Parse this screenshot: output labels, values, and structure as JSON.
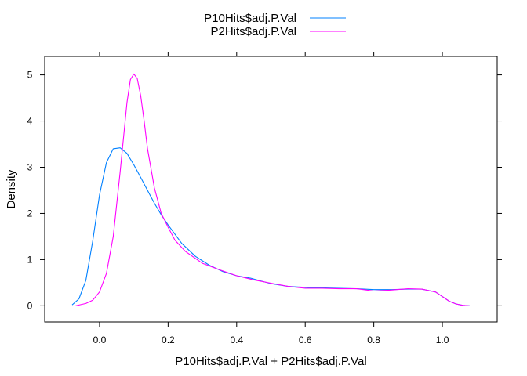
{
  "chart_data": {
    "type": "line",
    "xlabel": "P10Hits$adj.P.Val + P2Hits$adj.P.Val",
    "ylabel": "Density",
    "xlim": [
      -0.16,
      1.16
    ],
    "ylim": [
      -0.35,
      5.4
    ],
    "x_ticks": [
      0.0,
      0.2,
      0.4,
      0.6,
      0.8,
      1.0
    ],
    "x_tick_labels": [
      "0.0",
      "0.2",
      "0.4",
      "0.6",
      "0.8",
      "1.0"
    ],
    "y_ticks": [
      0,
      1,
      2,
      3,
      4,
      5
    ],
    "y_tick_labels": [
      "0",
      "1",
      "2",
      "3",
      "4",
      "5"
    ],
    "legend_position": "top",
    "series": [
      {
        "name": "P10Hits$adj.P.Val",
        "color": "#0080ff",
        "x": [
          -0.08,
          -0.06,
          -0.04,
          -0.02,
          0.0,
          0.02,
          0.04,
          0.06,
          0.08,
          0.1,
          0.12,
          0.14,
          0.16,
          0.18,
          0.2,
          0.24,
          0.28,
          0.32,
          0.36,
          0.4,
          0.44,
          0.5,
          0.55,
          0.6,
          0.65,
          0.7,
          0.75,
          0.8,
          0.85,
          0.9,
          0.94,
          0.98,
          1.0,
          1.02,
          1.04,
          1.06,
          1.08
        ],
        "y": [
          0.02,
          0.15,
          0.55,
          1.4,
          2.4,
          3.1,
          3.4,
          3.42,
          3.3,
          3.05,
          2.78,
          2.5,
          2.22,
          1.97,
          1.75,
          1.35,
          1.07,
          0.88,
          0.74,
          0.65,
          0.6,
          0.48,
          0.42,
          0.4,
          0.39,
          0.38,
          0.37,
          0.35,
          0.35,
          0.36,
          0.36,
          0.3,
          0.2,
          0.1,
          0.04,
          0.01,
          0.0
        ]
      },
      {
        "name": "P2Hits$adj.P.Val",
        "color": "#ff00ff",
        "x": [
          -0.07,
          -0.04,
          -0.02,
          0.0,
          0.02,
          0.04,
          0.06,
          0.08,
          0.09,
          0.1,
          0.11,
          0.12,
          0.13,
          0.14,
          0.16,
          0.18,
          0.2,
          0.22,
          0.25,
          0.3,
          0.35,
          0.4,
          0.45,
          0.5,
          0.55,
          0.6,
          0.65,
          0.7,
          0.75,
          0.8,
          0.85,
          0.9,
          0.94,
          0.98,
          1.0,
          1.02,
          1.04,
          1.06,
          1.08
        ],
        "y": [
          0.0,
          0.05,
          0.12,
          0.3,
          0.7,
          1.5,
          2.9,
          4.4,
          4.9,
          5.02,
          4.92,
          4.55,
          4.0,
          3.4,
          2.55,
          2.0,
          1.7,
          1.42,
          1.18,
          0.92,
          0.78,
          0.65,
          0.56,
          0.49,
          0.42,
          0.38,
          0.38,
          0.37,
          0.37,
          0.32,
          0.34,
          0.37,
          0.36,
          0.3,
          0.2,
          0.1,
          0.04,
          0.01,
          0.0
        ]
      }
    ]
  }
}
